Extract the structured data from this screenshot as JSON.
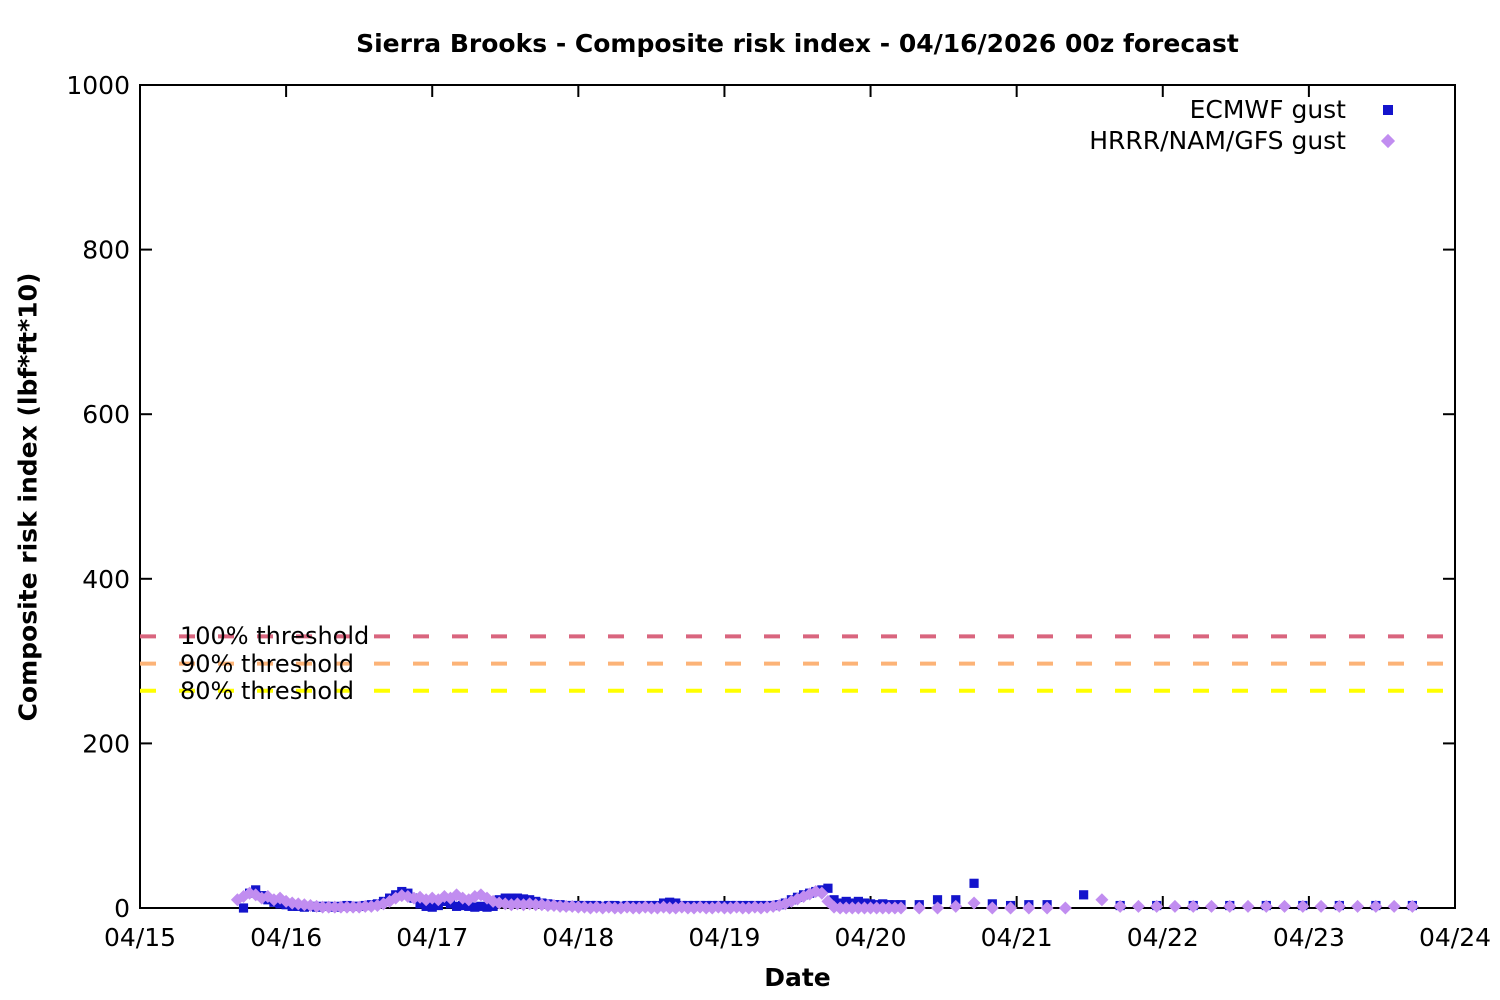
{
  "chart_data": {
    "type": "scatter",
    "title": "Sierra Brooks - Composite risk index - 04/16/2026 00z forecast",
    "xlabel": "Date",
    "ylabel": "Composite risk index (lbf*ft*10)",
    "x_tick_labels": [
      "04/15",
      "04/16",
      "04/17",
      "04/18",
      "04/19",
      "04/20",
      "04/21",
      "04/22",
      "04/23",
      "04/24"
    ],
    "x_unit": "hours since 04/15 00z",
    "xlim_hours": [
      0,
      216
    ],
    "y_ticks": [
      0,
      200,
      400,
      600,
      800,
      1000
    ],
    "ylim": [
      0,
      1000
    ],
    "grid": false,
    "border_box": true,
    "legend": {
      "position": "top-right",
      "entries": [
        {
          "label": "ECMWF gust",
          "marker": "square",
          "color": "#1414cc"
        },
        {
          "label": "HRRR/NAM/GFS gust",
          "marker": "diamond",
          "color": "#c18df0"
        }
      ]
    },
    "thresholds": [
      {
        "label": "100% threshold",
        "value": 330,
        "color": "#d9657e"
      },
      {
        "label": "90% threshold",
        "value": 297,
        "color": "#fcb377"
      },
      {
        "label": "80% threshold",
        "value": 264,
        "color": "#ffff00"
      }
    ],
    "series": [
      {
        "name": "ECMWF gust",
        "marker": "square",
        "color": "#1414cc",
        "points": [
          [
            17,
            0
          ],
          [
            18,
            18
          ],
          [
            19,
            22
          ],
          [
            20,
            15
          ],
          [
            21,
            10
          ],
          [
            22,
            7
          ],
          [
            23,
            5
          ],
          [
            24,
            4
          ],
          [
            25,
            2
          ],
          [
            26,
            2
          ],
          [
            27,
            1
          ],
          [
            28,
            2
          ],
          [
            29,
            1
          ],
          [
            30,
            2
          ],
          [
            31,
            2
          ],
          [
            32,
            1
          ],
          [
            33,
            2
          ],
          [
            34,
            3
          ],
          [
            35,
            2
          ],
          [
            36,
            2
          ],
          [
            37,
            3
          ],
          [
            38,
            4
          ],
          [
            39,
            5
          ],
          [
            40,
            8
          ],
          [
            41,
            12
          ],
          [
            42,
            16
          ],
          [
            43,
            20
          ],
          [
            44,
            18
          ],
          [
            45,
            12
          ],
          [
            46,
            5
          ],
          [
            47,
            2
          ],
          [
            48,
            1
          ],
          [
            49,
            3
          ],
          [
            50,
            8
          ],
          [
            51,
            5
          ],
          [
            52,
            2
          ],
          [
            53,
            3
          ],
          [
            54,
            2
          ],
          [
            55,
            1
          ],
          [
            56,
            2
          ],
          [
            57,
            1
          ],
          [
            58,
            2
          ],
          [
            59,
            10
          ],
          [
            60,
            12
          ],
          [
            61,
            12
          ],
          [
            62,
            12
          ],
          [
            63,
            11
          ],
          [
            64,
            10
          ],
          [
            65,
            8
          ],
          [
            66,
            6
          ],
          [
            67,
            5
          ],
          [
            68,
            4
          ],
          [
            69,
            4
          ],
          [
            70,
            3
          ],
          [
            71,
            3
          ],
          [
            72,
            3
          ],
          [
            73,
            3
          ],
          [
            74,
            3
          ],
          [
            75,
            3
          ],
          [
            76,
            2
          ],
          [
            77,
            3
          ],
          [
            78,
            3
          ],
          [
            79,
            2
          ],
          [
            80,
            3
          ],
          [
            81,
            3
          ],
          [
            82,
            3
          ],
          [
            83,
            3
          ],
          [
            84,
            3
          ],
          [
            85,
            3
          ],
          [
            86,
            6
          ],
          [
            87,
            7
          ],
          [
            88,
            6
          ],
          [
            89,
            3
          ],
          [
            90,
            3
          ],
          [
            91,
            3
          ],
          [
            92,
            3
          ],
          [
            93,
            3
          ],
          [
            94,
            3
          ],
          [
            95,
            3
          ],
          [
            96,
            3
          ],
          [
            97,
            3
          ],
          [
            98,
            3
          ],
          [
            99,
            3
          ],
          [
            100,
            3
          ],
          [
            101,
            3
          ],
          [
            102,
            3
          ],
          [
            103,
            3
          ],
          [
            104,
            3
          ],
          [
            105,
            4
          ],
          [
            106,
            6
          ],
          [
            107,
            10
          ],
          [
            108,
            13
          ],
          [
            109,
            16
          ],
          [
            110,
            18
          ],
          [
            111,
            20
          ],
          [
            112,
            22
          ],
          [
            113,
            24
          ],
          [
            114,
            10
          ],
          [
            115,
            6
          ],
          [
            116,
            8
          ],
          [
            117,
            6
          ],
          [
            118,
            8
          ],
          [
            119,
            6
          ],
          [
            120,
            5
          ],
          [
            121,
            4
          ],
          [
            122,
            5
          ],
          [
            123,
            4
          ],
          [
            124,
            4
          ],
          [
            125,
            4
          ],
          [
            128,
            4
          ],
          [
            131,
            10
          ],
          [
            134,
            10
          ],
          [
            137,
            30
          ],
          [
            140,
            5
          ],
          [
            143,
            3
          ],
          [
            146,
            4
          ],
          [
            149,
            4
          ],
          [
            155,
            16
          ],
          [
            161,
            3
          ],
          [
            167,
            3
          ],
          [
            173,
            3
          ],
          [
            179,
            3
          ],
          [
            185,
            3
          ],
          [
            191,
            3
          ],
          [
            197,
            3
          ],
          [
            203,
            3
          ],
          [
            209,
            3
          ]
        ]
      },
      {
        "name": "HRRR/NAM/GFS gust",
        "marker": "diamond",
        "color": "#c18df0",
        "points": [
          [
            16,
            10
          ],
          [
            17,
            14
          ],
          [
            18,
            18
          ],
          [
            19,
            16
          ],
          [
            20,
            12
          ],
          [
            21,
            14
          ],
          [
            22,
            10
          ],
          [
            23,
            12
          ],
          [
            24,
            8
          ],
          [
            25,
            6
          ],
          [
            26,
            5
          ],
          [
            27,
            4
          ],
          [
            28,
            3
          ],
          [
            29,
            2
          ],
          [
            30,
            1
          ],
          [
            31,
            1
          ],
          [
            32,
            1
          ],
          [
            33,
            1
          ],
          [
            34,
            1
          ],
          [
            35,
            1
          ],
          [
            36,
            1
          ],
          [
            37,
            2
          ],
          [
            38,
            2
          ],
          [
            39,
            3
          ],
          [
            40,
            5
          ],
          [
            41,
            8
          ],
          [
            42,
            12
          ],
          [
            43,
            15
          ],
          [
            44,
            14
          ],
          [
            45,
            12
          ],
          [
            46,
            13
          ],
          [
            47,
            10
          ],
          [
            48,
            12
          ],
          [
            49,
            10
          ],
          [
            50,
            14
          ],
          [
            51,
            12
          ],
          [
            52,
            16
          ],
          [
            53,
            12
          ],
          [
            54,
            10
          ],
          [
            55,
            14
          ],
          [
            56,
            16
          ],
          [
            57,
            12
          ],
          [
            58,
            8
          ],
          [
            59,
            6
          ],
          [
            60,
            5
          ],
          [
            61,
            4
          ],
          [
            62,
            5
          ],
          [
            63,
            4
          ],
          [
            64,
            5
          ],
          [
            65,
            4
          ],
          [
            66,
            4
          ],
          [
            67,
            3
          ],
          [
            68,
            3
          ],
          [
            69,
            2
          ],
          [
            70,
            2
          ],
          [
            71,
            2
          ],
          [
            72,
            1
          ],
          [
            73,
            1
          ],
          [
            74,
            0
          ],
          [
            75,
            1
          ],
          [
            76,
            0
          ],
          [
            77,
            1
          ],
          [
            78,
            0
          ],
          [
            79,
            0
          ],
          [
            80,
            1
          ],
          [
            81,
            0
          ],
          [
            82,
            0
          ],
          [
            83,
            1
          ],
          [
            84,
            0
          ],
          [
            85,
            0
          ],
          [
            86,
            1
          ],
          [
            87,
            0
          ],
          [
            88,
            0
          ],
          [
            89,
            1
          ],
          [
            90,
            0
          ],
          [
            91,
            0
          ],
          [
            92,
            1
          ],
          [
            93,
            0
          ],
          [
            94,
            0
          ],
          [
            95,
            1
          ],
          [
            96,
            0
          ],
          [
            97,
            0
          ],
          [
            98,
            1
          ],
          [
            99,
            0
          ],
          [
            100,
            0
          ],
          [
            101,
            1
          ],
          [
            102,
            0
          ],
          [
            103,
            1
          ],
          [
            104,
            2
          ],
          [
            105,
            3
          ],
          [
            106,
            5
          ],
          [
            107,
            8
          ],
          [
            108,
            11
          ],
          [
            109,
            14
          ],
          [
            110,
            17
          ],
          [
            111,
            20
          ],
          [
            112,
            18
          ],
          [
            113,
            8
          ],
          [
            114,
            1
          ],
          [
            115,
            0
          ],
          [
            116,
            0
          ],
          [
            117,
            0
          ],
          [
            118,
            0
          ],
          [
            119,
            0
          ],
          [
            120,
            0
          ],
          [
            121,
            0
          ],
          [
            122,
            0
          ],
          [
            123,
            0
          ],
          [
            124,
            0
          ],
          [
            125,
            0
          ],
          [
            128,
            0
          ],
          [
            131,
            0
          ],
          [
            134,
            2
          ],
          [
            137,
            6
          ],
          [
            140,
            0
          ],
          [
            143,
            0
          ],
          [
            146,
            0
          ],
          [
            149,
            0
          ],
          [
            152,
            0
          ],
          [
            158,
            10
          ],
          [
            161,
            2
          ],
          [
            164,
            2
          ],
          [
            167,
            2
          ],
          [
            170,
            2
          ],
          [
            173,
            2
          ],
          [
            176,
            2
          ],
          [
            179,
            2
          ],
          [
            182,
            2
          ],
          [
            185,
            2
          ],
          [
            188,
            2
          ],
          [
            191,
            2
          ],
          [
            194,
            2
          ],
          [
            197,
            2
          ],
          [
            200,
            2
          ],
          [
            203,
            2
          ],
          [
            206,
            2
          ],
          [
            209,
            2
          ]
        ]
      }
    ]
  }
}
